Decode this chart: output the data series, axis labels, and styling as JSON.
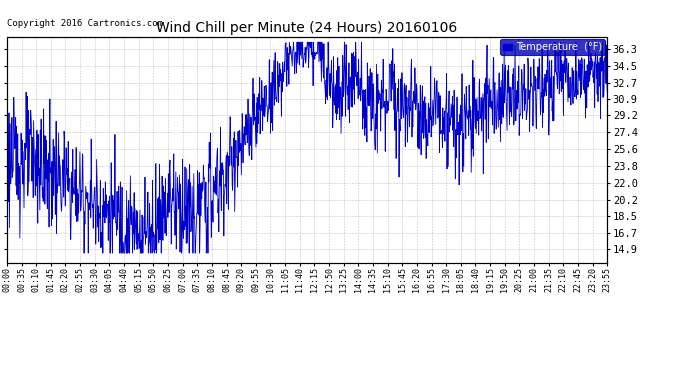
{
  "title": "Wind Chill per Minute (24 Hours) 20160106",
  "copyright": "Copyright 2016 Cartronics.com",
  "legend_label": "Temperature  (°F)",
  "line_color": "#0000cc",
  "background_color": "#ffffff",
  "grid_color": "#999999",
  "yticks": [
    14.9,
    16.7,
    18.5,
    20.2,
    22.0,
    23.8,
    25.6,
    27.4,
    29.2,
    30.9,
    32.7,
    34.5,
    36.3
  ],
  "ylim": [
    13.5,
    37.5
  ],
  "xtick_labels": [
    "00:00",
    "00:35",
    "01:10",
    "01:45",
    "02:20",
    "02:55",
    "03:30",
    "04:05",
    "04:40",
    "05:15",
    "05:50",
    "06:25",
    "07:00",
    "07:35",
    "08:10",
    "08:45",
    "09:20",
    "09:55",
    "10:30",
    "11:05",
    "11:40",
    "12:15",
    "12:50",
    "13:25",
    "14:00",
    "14:35",
    "15:10",
    "15:45",
    "16:20",
    "16:55",
    "17:30",
    "18:05",
    "18:40",
    "19:15",
    "19:50",
    "20:25",
    "21:00",
    "21:35",
    "22:10",
    "22:45",
    "23:20",
    "23:55"
  ]
}
